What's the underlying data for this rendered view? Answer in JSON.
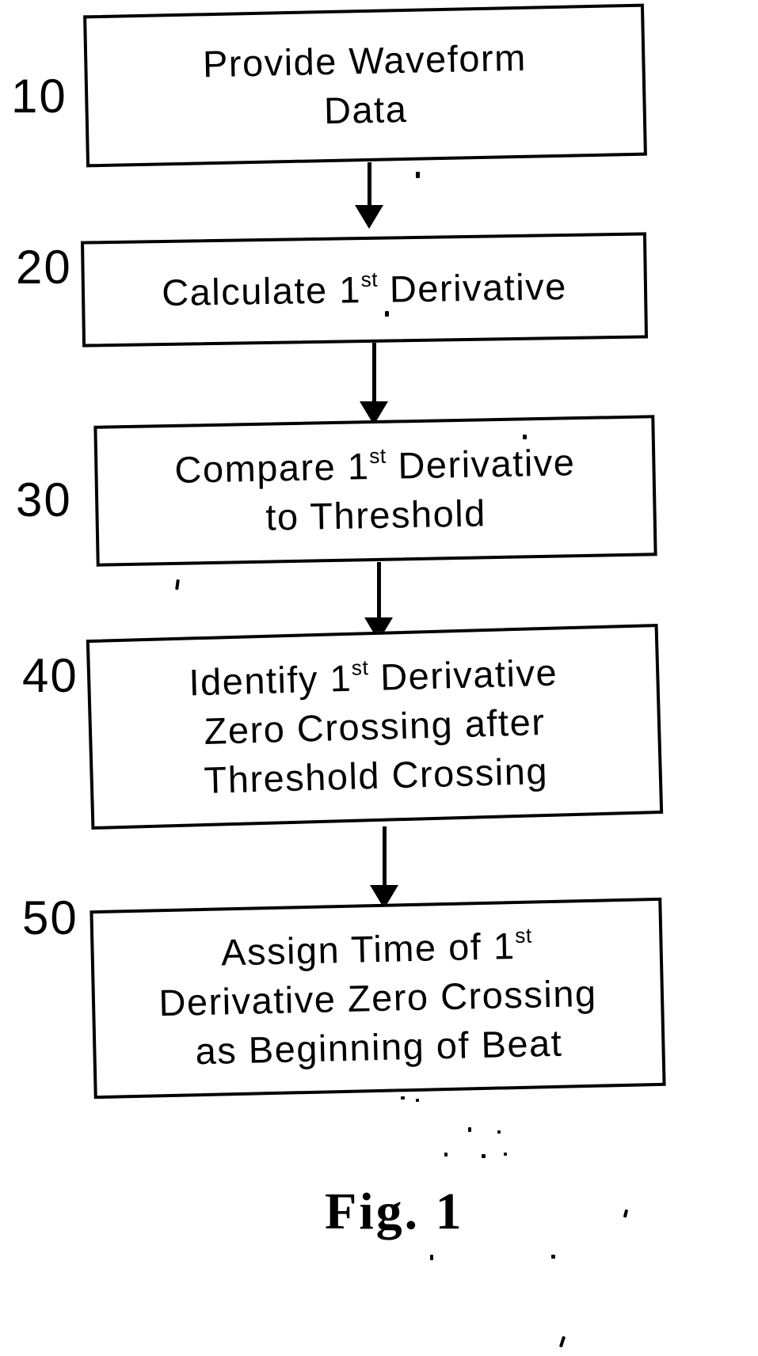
{
  "figure": {
    "caption": "Fig. 1",
    "ink_color": "#000000",
    "paper_color": "#ffffff",
    "steps": [
      {
        "ref": "10",
        "lines": [
          [
            {
              "t": "Provide Waveform"
            }
          ],
          [
            {
              "t": "Data"
            }
          ]
        ]
      },
      {
        "ref": "20",
        "lines": [
          [
            {
              "t": "Calculate 1"
            },
            {
              "t": "st",
              "sup": true
            },
            {
              "t": " Derivative"
            }
          ]
        ]
      },
      {
        "ref": "30",
        "lines": [
          [
            {
              "t": "Compare 1"
            },
            {
              "t": "st",
              "sup": true
            },
            {
              "t": " Derivative"
            }
          ],
          [
            {
              "t": "to Threshold"
            }
          ]
        ]
      },
      {
        "ref": "40",
        "lines": [
          [
            {
              "t": "Identify 1"
            },
            {
              "t": "st",
              "sup": true
            },
            {
              "t": " Derivative"
            }
          ],
          [
            {
              "t": "Zero Crossing after"
            }
          ],
          [
            {
              "t": "Threshold Crossing"
            }
          ]
        ]
      },
      {
        "ref": "50",
        "lines": [
          [
            {
              "t": "Assign Time of 1"
            },
            {
              "t": "st",
              "sup": true
            }
          ],
          [
            {
              "t": "Derivative Zero Crossing"
            }
          ],
          [
            {
              "t": "as Beginning of Beat"
            }
          ]
        ]
      }
    ],
    "connections": [
      {
        "from": "10",
        "to": "20"
      },
      {
        "from": "20",
        "to": "30"
      },
      {
        "from": "30",
        "to": "40"
      },
      {
        "from": "40",
        "to": "50"
      }
    ]
  }
}
